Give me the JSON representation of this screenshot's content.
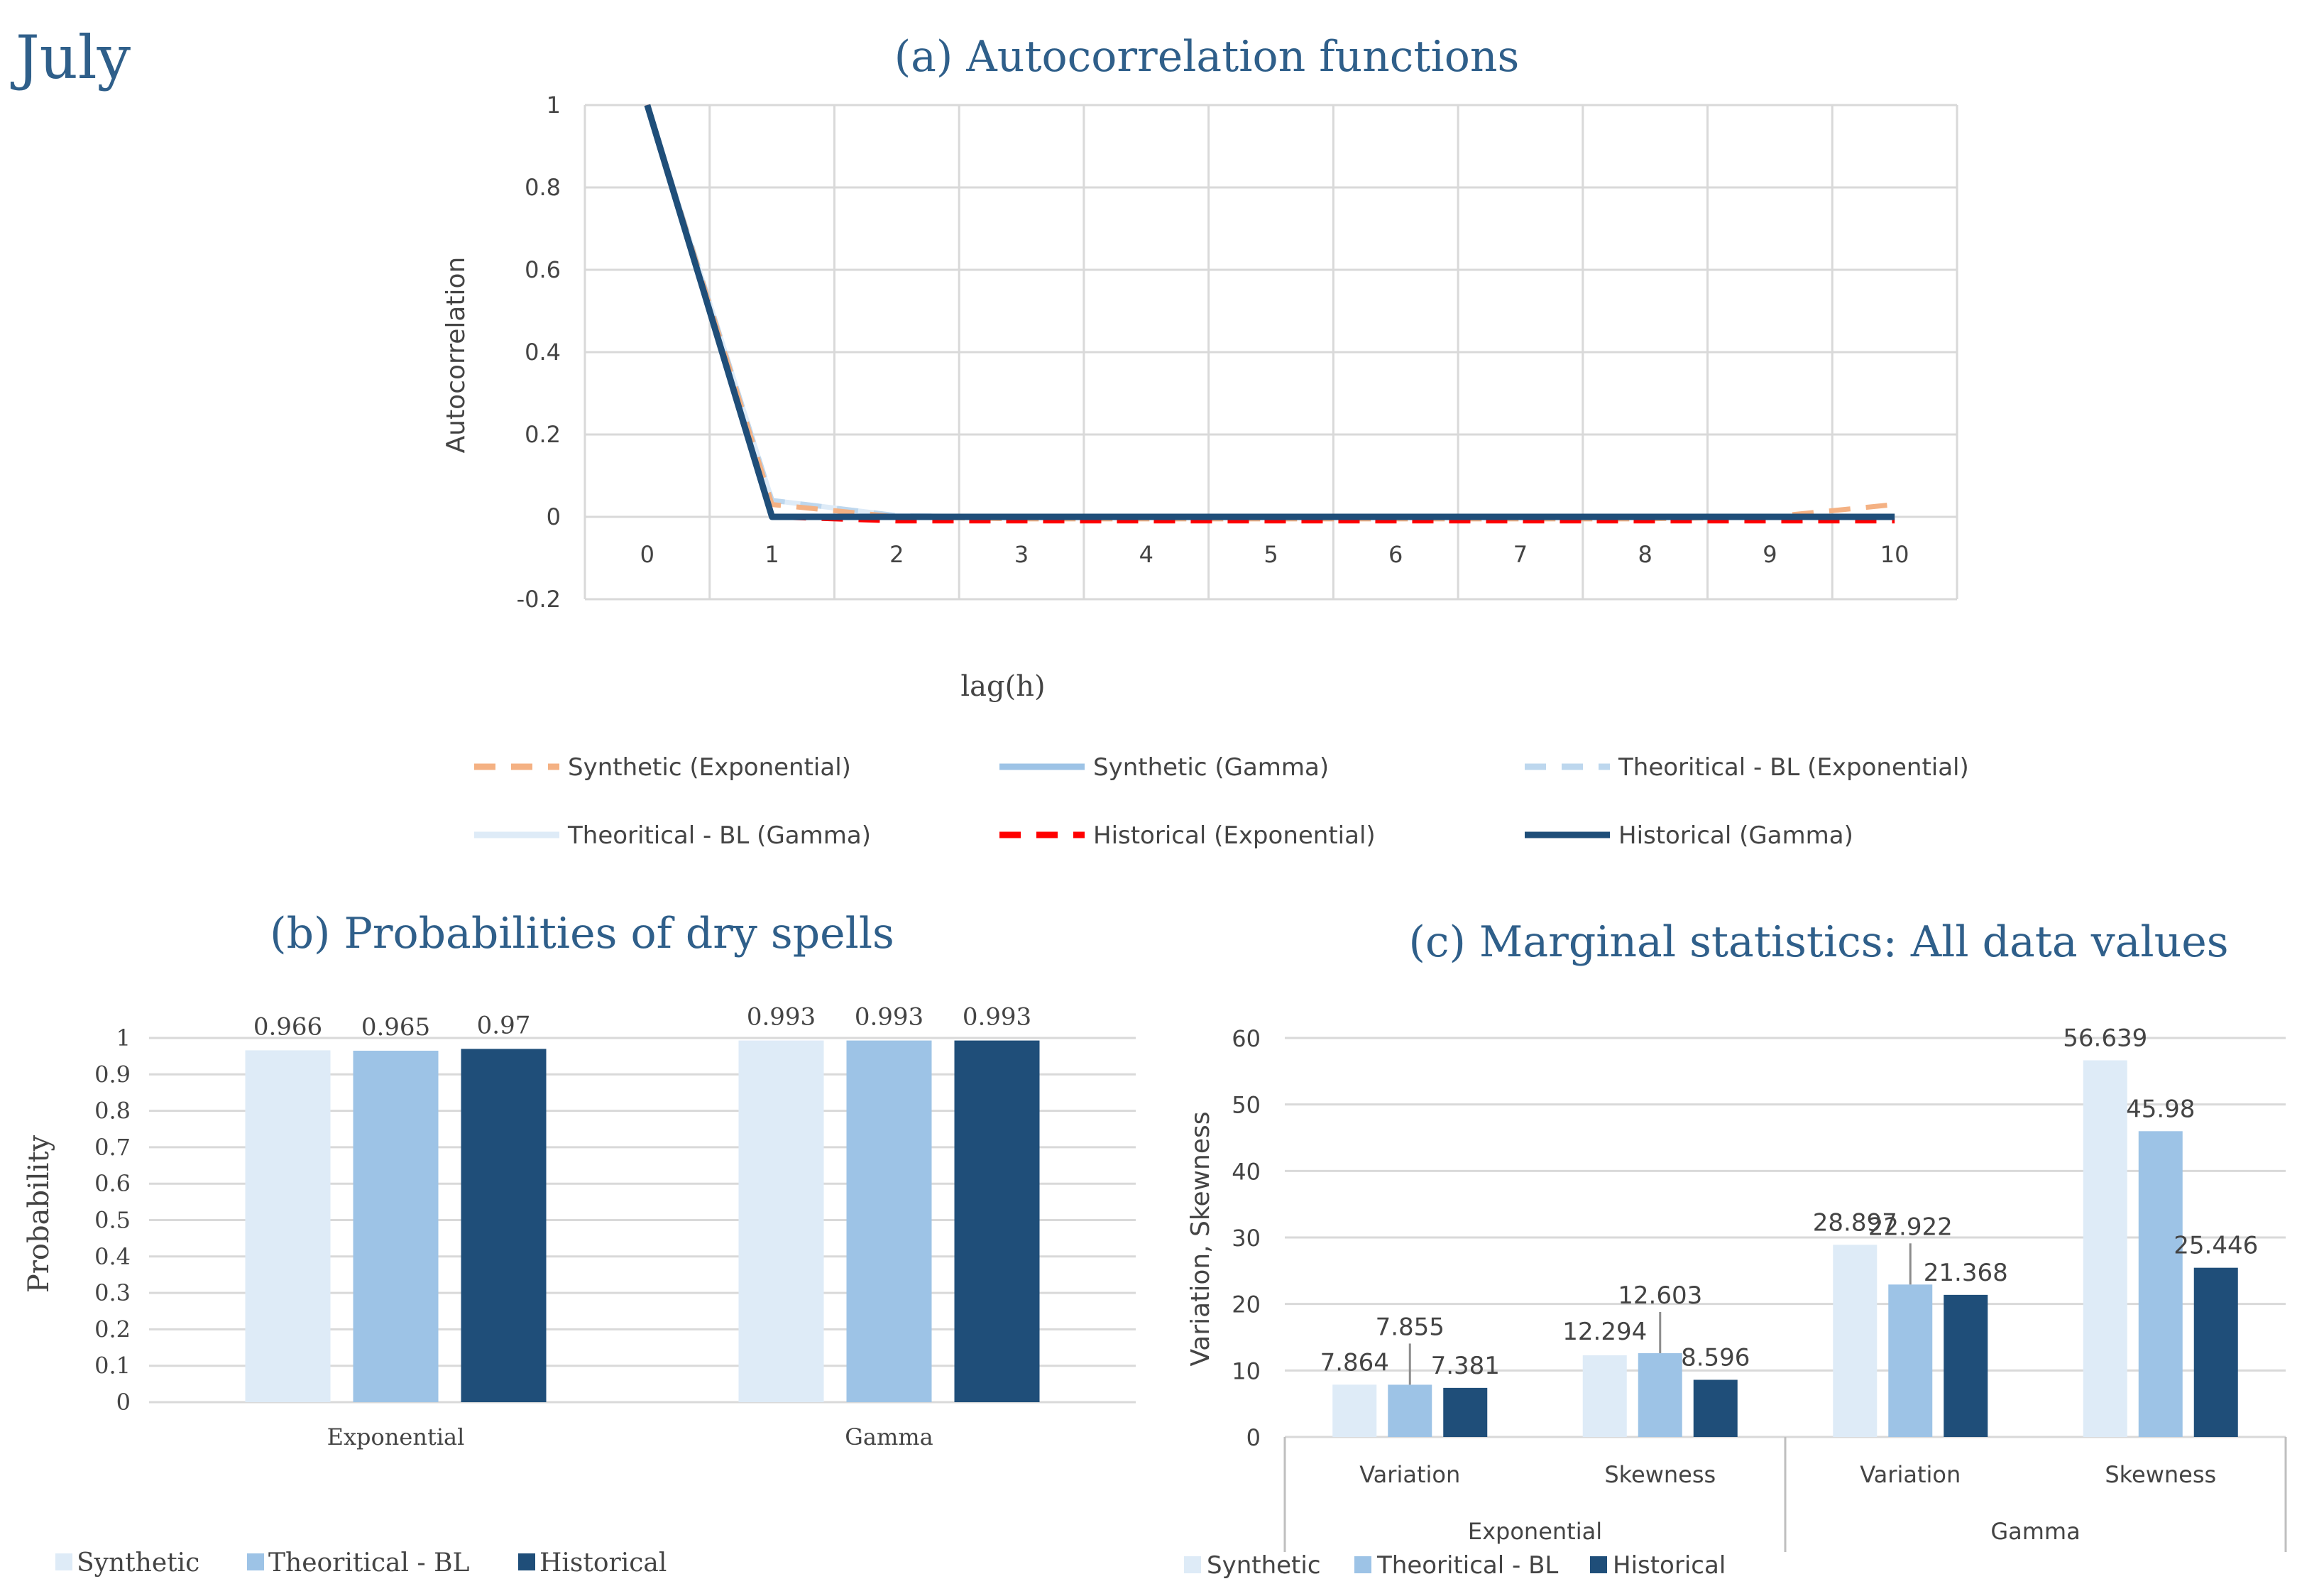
{
  "month_label": "July",
  "colors": {
    "synthetic_exponential": "#f4b183",
    "synthetic_gamma": "#9dc3e6",
    "theoretical_exponential": "#bdd7ee",
    "theoretical_gamma": "#deebf7",
    "historical_exponential": "#ff0000",
    "historical_gamma": "#1f4e79",
    "bar_synthetic": "#deebf7",
    "bar_theoretical": "#9dc3e6",
    "bar_historical": "#1f4e79",
    "title_blue": "#2f5f8a"
  },
  "chart_data": [
    {
      "id": "acf",
      "type": "line",
      "title": "(a) Autocorrelation functions",
      "xlabel": "lag(h)",
      "ylabel": "Autocorrelation",
      "x": [
        0,
        1,
        2,
        3,
        4,
        5,
        6,
        7,
        8,
        9,
        10
      ],
      "ylim": [
        -0.2,
        1
      ],
      "yticks": [
        "1",
        "0.8",
        "0.6",
        "0.4",
        "0.2",
        "0",
        "-0.2"
      ],
      "ytick_values": [
        1,
        0.8,
        0.6,
        0.4,
        0.2,
        0,
        -0.2
      ],
      "grid": true,
      "legend_position": "bottom",
      "series": [
        {
          "name": "Synthetic (Exponential)",
          "style": "dashed",
          "color": "#f4b183",
          "values": [
            1,
            0.03,
            0.0,
            -0.005,
            -0.005,
            -0.005,
            -0.005,
            -0.005,
            -0.005,
            0.0,
            0.03
          ]
        },
        {
          "name": "Synthetic (Gamma)",
          "style": "solid",
          "color": "#9dc3e6",
          "values": [
            1,
            0.0,
            0.0,
            0.0,
            0.0,
            0.0,
            0.0,
            0.0,
            0.0,
            0.0,
            0.0
          ]
        },
        {
          "name": "Theoritical - BL (Exponential)",
          "style": "dashed",
          "color": "#bdd7ee",
          "values": [
            1,
            0.04,
            0.003,
            0.0,
            0.0,
            0.0,
            0.0,
            0.0,
            0.0,
            0.0,
            0.0
          ]
        },
        {
          "name": "Theoritical - BL (Gamma)",
          "style": "solid",
          "color": "#deebf7",
          "values": [
            1,
            0.04,
            0.003,
            0.0,
            0.0,
            0.0,
            0.0,
            0.0,
            0.0,
            0.0,
            0.0
          ]
        },
        {
          "name": "Historical (Exponential)",
          "style": "dashed",
          "color": "#ff0000",
          "values": [
            1,
            0.0,
            -0.01,
            -0.01,
            -0.01,
            -0.01,
            -0.01,
            -0.01,
            -0.01,
            -0.01,
            -0.01
          ]
        },
        {
          "name": "Historical (Gamma)",
          "style": "solid",
          "color": "#1f4e79",
          "values": [
            1,
            0.0,
            0.0,
            0.0,
            0.0,
            0.0,
            0.0,
            0.0,
            0.0,
            0.0,
            0.0
          ]
        }
      ]
    },
    {
      "id": "dry",
      "type": "bar",
      "title": "(b) Probabilities of dry spells",
      "ylabel": "Probability",
      "categories": [
        "Exponential",
        "Gamma"
      ],
      "ylim": [
        0,
        1
      ],
      "yticks": [
        "1",
        "0.9",
        "0.8",
        "0.7",
        "0.6",
        "0.5",
        "0.4",
        "0.3",
        "0.2",
        "0.1",
        "0"
      ],
      "ytick_values": [
        1,
        0.9,
        0.8,
        0.7,
        0.6,
        0.5,
        0.4,
        0.3,
        0.2,
        0.1,
        0
      ],
      "legend_position": "bottom-left",
      "series": [
        {
          "name": "Synthetic",
          "values": [
            0.966,
            0.993
          ],
          "labels": [
            "0.966",
            "0.993"
          ]
        },
        {
          "name": "Theoritical - BL",
          "values": [
            0.965,
            0.993
          ],
          "labels": [
            "0.965",
            "0.993"
          ]
        },
        {
          "name": "Historical",
          "values": [
            0.97,
            0.993
          ],
          "labels": [
            "0.97",
            "0.993"
          ]
        }
      ]
    },
    {
      "id": "marg",
      "type": "bar",
      "title": "(c) Marginal statistics: All data values",
      "ylabel": "Variation, Skewness",
      "groups": [
        "Exponential",
        "Gamma"
      ],
      "categories": [
        "Variation",
        "Skewness",
        "Variation",
        "Skewness"
      ],
      "ylim": [
        0,
        60
      ],
      "yticks": [
        "60",
        "50",
        "40",
        "30",
        "20",
        "10",
        "0"
      ],
      "ytick_values": [
        60,
        50,
        40,
        30,
        20,
        10,
        0
      ],
      "legend_position": "bottom-left",
      "series": [
        {
          "name": "Synthetic",
          "values": [
            7.864,
            12.294,
            28.897,
            56.639
          ],
          "labels": [
            "7.864",
            "12.294",
            "28.897",
            "56.639"
          ]
        },
        {
          "name": "Theoritical - BL",
          "values": [
            7.855,
            12.603,
            22.922,
            45.98
          ],
          "labels": [
            "7.855",
            "12.603",
            "22.922",
            "45.98"
          ]
        },
        {
          "name": "Historical",
          "values": [
            7.381,
            8.596,
            21.368,
            25.446
          ],
          "labels": [
            "7.381",
            "8.596",
            "21.368",
            "25.446"
          ]
        }
      ]
    }
  ]
}
